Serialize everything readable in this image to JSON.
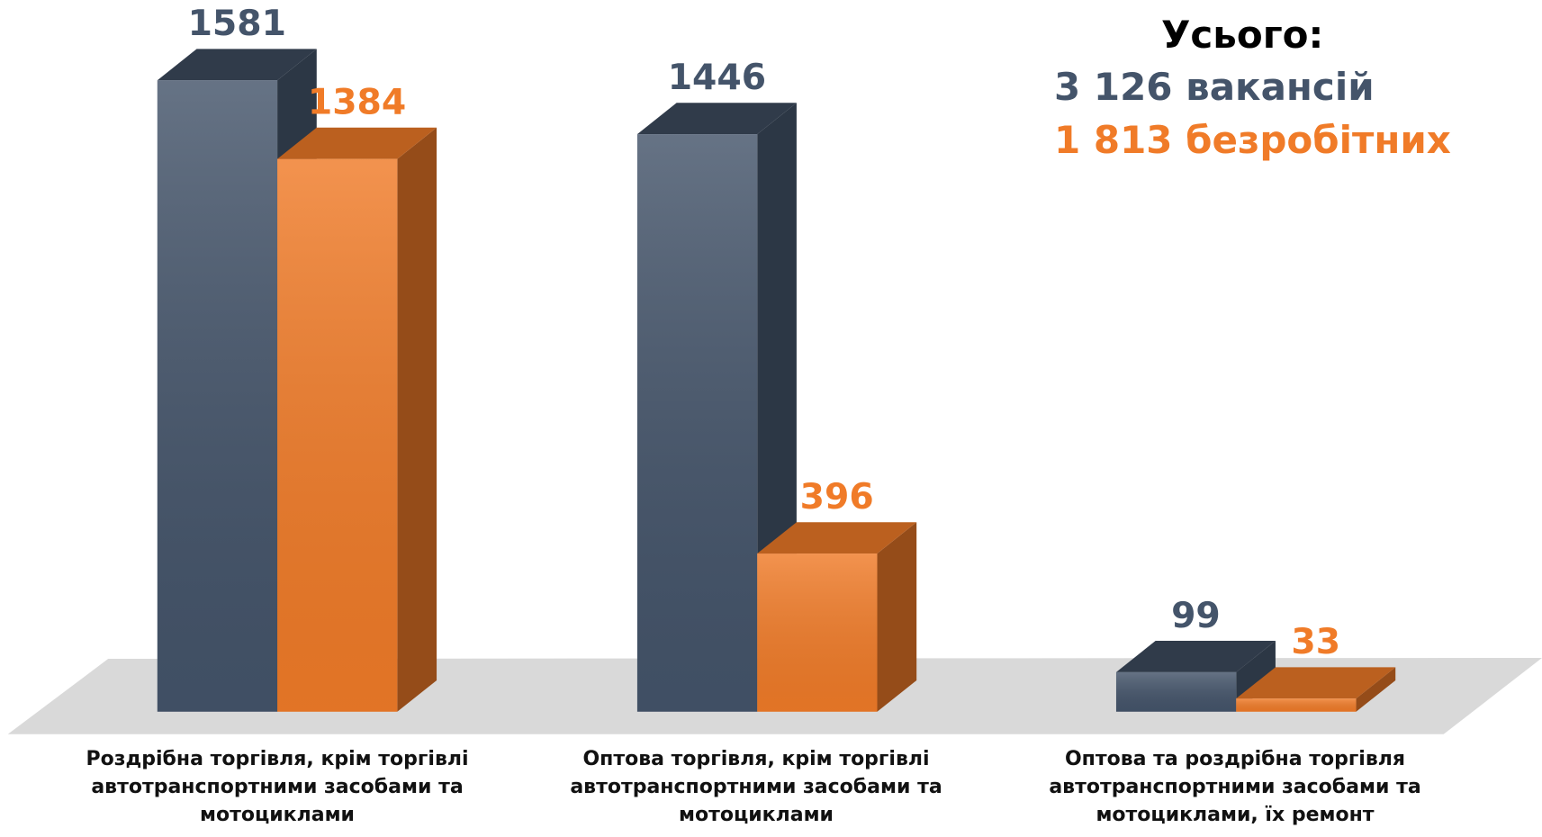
{
  "chart_data": {
    "type": "bar3d",
    "categories": [
      "Роздрібна торгівля, крім торгівлі автотранспортними засобами та мотоциклами",
      "Оптова торгівля, крім торгівлі автотранспортними засобами та мотоциклами",
      "Оптова та роздрібна торгівля автотранспортними засобами та мотоциклами, їх ремонт"
    ],
    "series": [
      {
        "color": "#44546a",
        "values": [
          1581,
          1446,
          99
        ]
      },
      {
        "color": "#f07b28",
        "values": [
          1384,
          396,
          33
        ]
      }
    ],
    "annotations": [
      "Усього:",
      "3 126 вакансій",
      "1 813 безробітних"
    ],
    "annotation_colors": [
      "#000000",
      "#44546a",
      "#f07b28"
    ]
  }
}
